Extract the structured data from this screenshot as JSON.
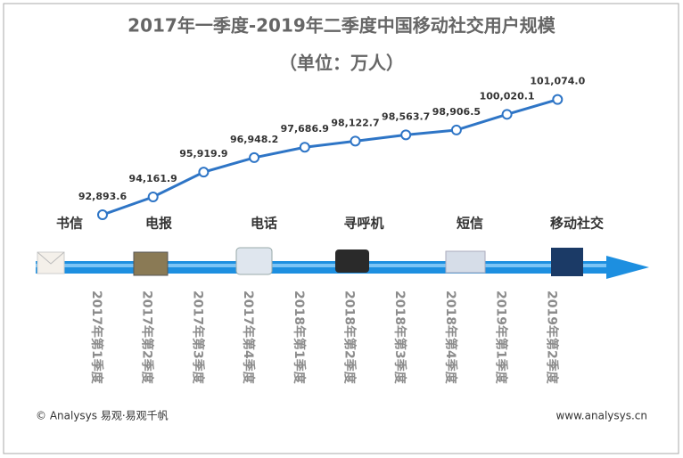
{
  "chart_data": {
    "type": "line",
    "title": "2017年一季度-2019年二季度中国移动社交用户规模",
    "subtitle": "（单位：万人）",
    "categories": [
      "2017年第1季度",
      "2017年第2季度",
      "2017年第3季度",
      "2017年第4季度",
      "2018年第1季度",
      "2018年第2季度",
      "2018年第3季度",
      "2018年第4季度",
      "2019年第1季度",
      "2019年第2季度"
    ],
    "values": [
      92893.6,
      94161.9,
      95919.9,
      96948.2,
      97686.9,
      98122.7,
      98563.7,
      98906.5,
      100020.1,
      101074.0
    ],
    "value_labels": [
      "92,893.6",
      "94,161.9",
      "95,919.9",
      "96,948.2",
      "97,686.9",
      "98,122.7",
      "98,563.7",
      "98,906.5",
      "100,020.1",
      "101,074.0"
    ],
    "color": "#2e75c6",
    "ylim": [
      91000,
      102000
    ],
    "annotations": [
      "书信",
      "电报",
      "电话",
      "寻呼机",
      "短信",
      "移动社交"
    ],
    "source": "© Analysys 易观·易观千帆",
    "website": "www.analysys.cn"
  }
}
